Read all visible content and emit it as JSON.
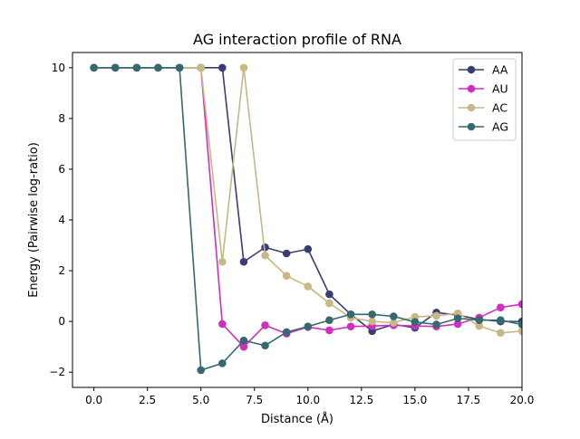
{
  "chart_data": {
    "type": "line",
    "title": "AG interaction profile of  RNA",
    "xlabel": "Distance (Å)",
    "ylabel": "Energy (Pairwise log-ratio)",
    "xlim": [
      -1.0,
      20.0
    ],
    "ylim": [
      -2.6,
      10.6
    ],
    "xticks": [
      0.0,
      2.5,
      5.0,
      7.5,
      10.0,
      12.5,
      15.0,
      17.5,
      20.0
    ],
    "xtick_labels": [
      "0.0",
      "2.5",
      "5.0",
      "7.5",
      "10.0",
      "12.5",
      "15.0",
      "17.5",
      "20.0"
    ],
    "yticks": [
      -2,
      0,
      2,
      4,
      6,
      8,
      10
    ],
    "ytick_labels": [
      "−2",
      "0",
      "2",
      "4",
      "6",
      "8",
      "10"
    ],
    "grid": false,
    "legend_position": "top-right",
    "x": [
      0,
      1,
      2,
      3,
      4,
      5,
      6,
      7,
      8,
      9,
      10,
      11,
      12,
      13,
      14,
      15,
      16,
      17,
      18,
      19,
      20
    ],
    "series": [
      {
        "name": "AA",
        "color": "#383e72",
        "values": [
          10,
          10,
          10,
          10,
          10,
          10,
          10,
          2.35,
          2.92,
          2.68,
          2.85,
          1.07,
          0.28,
          -0.38,
          -0.12,
          -0.25,
          0.35,
          0.25,
          0.08,
          0.0,
          0.0
        ]
      },
      {
        "name": "AU",
        "color": "#d02ebe",
        "values": [
          10,
          10,
          10,
          10,
          10,
          10,
          -0.1,
          -1.0,
          -0.15,
          -0.48,
          -0.22,
          -0.35,
          -0.2,
          -0.18,
          -0.15,
          -0.18,
          -0.2,
          -0.1,
          0.15,
          0.55,
          0.68
        ]
      },
      {
        "name": "AC",
        "color": "#c7b884",
        "values": [
          10,
          10,
          10,
          10,
          10,
          10,
          2.35,
          10,
          2.6,
          1.8,
          1.38,
          0.72,
          0.15,
          0.0,
          -0.05,
          0.18,
          0.22,
          0.32,
          -0.18,
          -0.45,
          -0.38
        ]
      },
      {
        "name": "AG",
        "color": "#33696f",
        "values": [
          10,
          10,
          10,
          10,
          10,
          -1.92,
          -1.65,
          -0.75,
          -0.95,
          -0.42,
          -0.2,
          0.05,
          0.28,
          0.28,
          0.2,
          -0.02,
          -0.12,
          0.12,
          0.05,
          0.05,
          -0.12
        ]
      }
    ]
  }
}
